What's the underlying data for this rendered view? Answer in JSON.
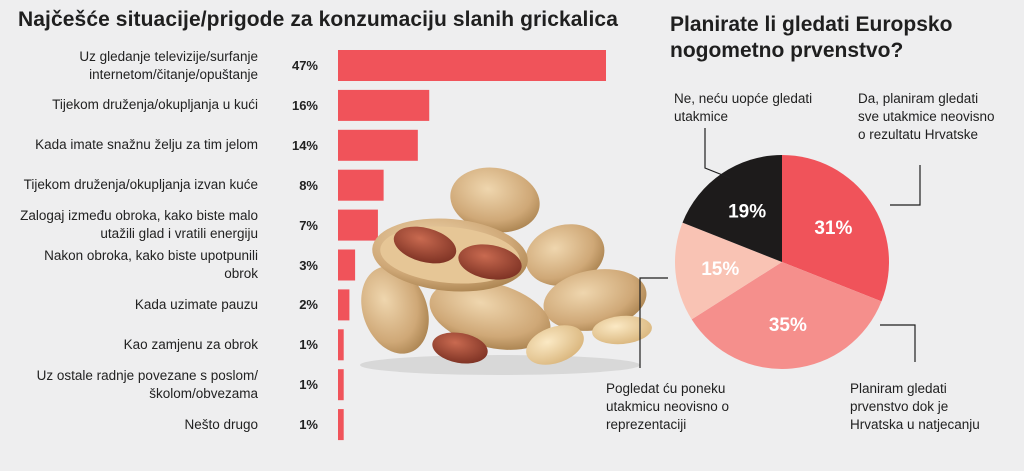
{
  "bar_title": "Najčešće situacije/prigode za konzumaciju slanih grickalica",
  "pie_title": "Planirate li gledati Europsko nogometno prvenstvo?",
  "colors": {
    "bar": "#f0535a",
    "pie_no": "#1d1b1b",
    "pie_all": "#f0535a",
    "pie_while": "#f58f8c",
    "pie_some": "#f9c3b4"
  },
  "chart_data": [
    {
      "type": "bar",
      "orientation": "horizontal",
      "title": "Najčešće situacije/prigode za konzumaciju slanih grickalica",
      "categories": [
        "Uz gledanje televizije/surfanje internetom/čitanje/opuštanje",
        "Tijekom druženja/okupljanja u kući",
        "Kada imate snažnu želju za tim jelom",
        "Tijekom druženja/okupljanja izvan kuće",
        "Zalogaj između obroka, kako biste malo utažili glad i vratili energiju",
        "Nakon obroka, kako biste upotpunili obrok",
        "Kada uzimate pauzu",
        "Kao zamjenu za obrok",
        "Uz ostale radnje povezane s poslom/ školom/obvezama",
        "Nešto drugo"
      ],
      "values": [
        47,
        16,
        14,
        8,
        7,
        3,
        2,
        1,
        1,
        1
      ],
      "value_labels": [
        "47%",
        "16%",
        "14%",
        "8%",
        "7%",
        "3%",
        "2%",
        "1%",
        "1%",
        "1%"
      ],
      "unit": "%",
      "xlim": [
        0,
        47
      ]
    },
    {
      "type": "pie",
      "title": "Planirate li gledati Europsko nogometno prvenstvo?",
      "slices": [
        {
          "label": "Da, planiram gledati sve utakmice neovisno o rezultatu Hrvatske",
          "value": 31,
          "value_label": "31%",
          "color": "#f0535a"
        },
        {
          "label": "Planiram gledati prvenstvo dok je Hrvatska u natjecanju",
          "value": 35,
          "value_label": "35%",
          "color": "#f58f8c"
        },
        {
          "label": "Pogledat ću poneku utakmicu neovisno o reprezentaciji",
          "value": 15,
          "value_label": "15%",
          "color": "#f9c3b4"
        },
        {
          "label": "Ne, neću uopće gledati utakmice",
          "value": 19,
          "value_label": "19%",
          "color": "#1d1b1b"
        }
      ]
    }
  ]
}
